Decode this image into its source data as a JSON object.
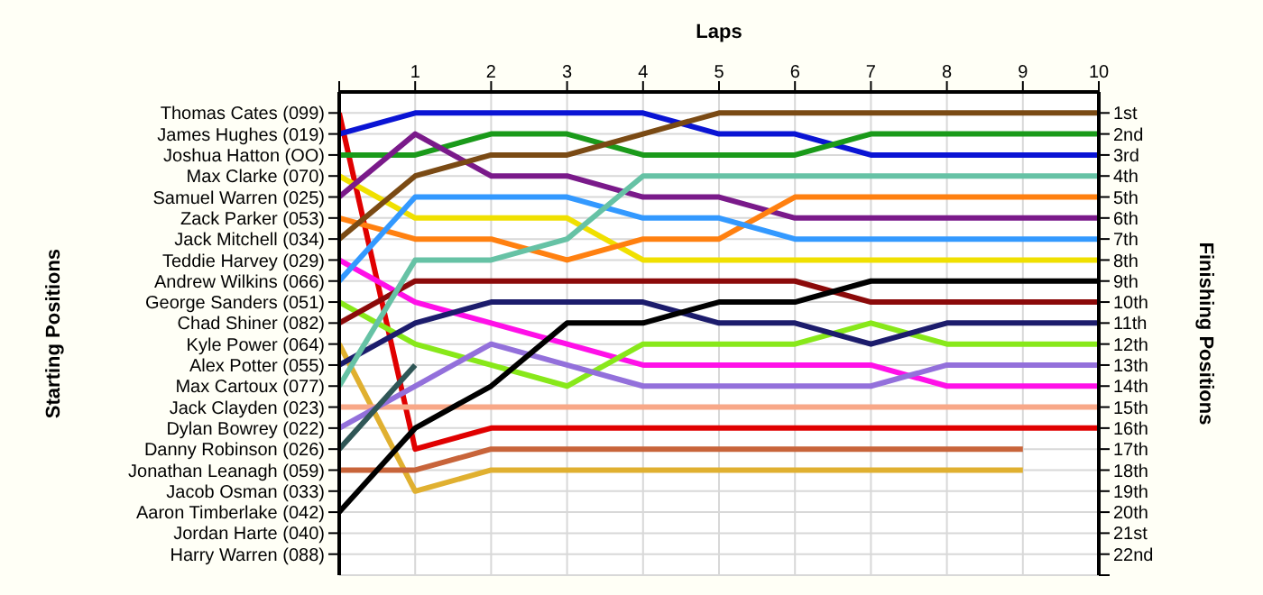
{
  "chart_data": {
    "type": "line",
    "xlabel": "Laps",
    "ylabel": "Finishing Positions",
    "annotations": [
      "Starting Positions"
    ],
    "x": [
      0,
      1,
      2,
      3,
      4,
      5,
      6,
      7,
      8,
      9,
      10
    ],
    "xlim": [
      0,
      10
    ],
    "xticks": [
      {
        "value": 0,
        "label": null
      },
      1,
      2,
      3,
      4,
      5,
      6,
      7,
      8,
      9,
      10
    ],
    "y_categories": [
      "Thomas Cates (099)",
      "James Hughes (019)",
      "Joshua Hatton (OO)",
      "Max Clarke (070)",
      "Samuel Warren (025)",
      "Zack Parker (053)",
      "Jack Mitchell (034)",
      "Teddie Harvey (029)",
      "Andrew Wilkins (066)",
      "George Sanders (051)",
      "Chad Shiner (082)",
      "Kyle Power (064)",
      "Alex Potter (055)",
      "Max Cartoux (077)",
      "Jack Clayden (023)",
      "Dylan Bowrey (022)",
      "Danny Robinson (026)",
      "Jonathan Leanagh (059)",
      "Jacob Osman (033)",
      "Aaron Timberlake (042)",
      "Jordan Harte (040)",
      "Harry Warren (088)"
    ],
    "ylim": [
      23,
      0
    ],
    "yticks": [
      {
        "value": 1,
        "label": "1st"
      },
      {
        "value": 2,
        "label": "2nd"
      },
      {
        "value": 3,
        "label": "3rd"
      },
      {
        "value": 4,
        "label": "4th"
      },
      {
        "value": 5,
        "label": "5th"
      },
      {
        "value": 6,
        "label": "6th"
      },
      {
        "value": 7,
        "label": "7th"
      },
      {
        "value": 8,
        "label": "8th"
      },
      {
        "value": 9,
        "label": "9th"
      },
      {
        "value": 10,
        "label": "10th"
      },
      {
        "value": 11,
        "label": "11th"
      },
      {
        "value": 12,
        "label": "12th"
      },
      {
        "value": 13,
        "label": "13th"
      },
      {
        "value": 14,
        "label": "14th"
      },
      {
        "value": 15,
        "label": "15th"
      },
      {
        "value": 16,
        "label": "16th"
      },
      {
        "value": 17,
        "label": "17th"
      },
      {
        "value": 18,
        "label": "18th"
      },
      {
        "value": 19,
        "label": "19th"
      },
      {
        "value": 20,
        "label": "20th"
      },
      {
        "value": 21,
        "label": "21st"
      },
      {
        "value": 22,
        "label": "22nd"
      },
      {
        "value": 23,
        "label": null
      }
    ],
    "grid": true,
    "series": [
      {
        "color": "#e00000",
        "values": [
          1,
          17,
          16,
          16,
          16,
          16,
          16,
          16,
          16,
          16,
          16
        ]
      },
      {
        "color": "#0a14d4",
        "values": [
          2,
          1,
          1,
          1,
          1,
          2,
          2,
          3,
          3,
          3,
          3
        ]
      },
      {
        "color": "#1a9a1a",
        "values": [
          3,
          3,
          2,
          2,
          3,
          3,
          3,
          2,
          2,
          2,
          2
        ]
      },
      {
        "color": "#f0e000",
        "values": [
          4,
          6,
          6,
          6,
          8,
          8,
          8,
          8,
          8,
          8,
          8
        ]
      },
      {
        "color": "#7a1a8a",
        "values": [
          5,
          2,
          4,
          4,
          5,
          5,
          6,
          6,
          6,
          6,
          6
        ]
      },
      {
        "color": "#ff8010",
        "values": [
          6,
          7,
          7,
          8,
          7,
          7,
          5,
          5,
          5,
          5,
          5
        ]
      },
      {
        "color": "#7a4a14",
        "values": [
          7,
          4,
          3,
          3,
          2,
          1,
          1,
          1,
          1,
          1,
          1
        ]
      },
      {
        "color": "#ff10e8",
        "values": [
          8,
          10,
          11,
          12,
          13,
          13,
          13,
          13,
          14,
          14,
          14
        ]
      },
      {
        "color": "#3399ff",
        "values": [
          9,
          5,
          5,
          5,
          6,
          6,
          7,
          7,
          7,
          7,
          7
        ]
      },
      {
        "color": "#88e81a",
        "values": [
          10,
          12,
          13,
          14,
          12,
          12,
          12,
          11,
          12,
          12,
          12
        ]
      },
      {
        "color": "#8b0a0a",
        "values": [
          11,
          9,
          9,
          9,
          9,
          9,
          9,
          10,
          10,
          10,
          10
        ]
      },
      {
        "color": "#e0b030",
        "values": [
          12,
          19,
          18,
          18,
          18,
          18,
          18,
          18,
          18,
          18,
          null
        ]
      },
      {
        "color": "#1c1c6c",
        "values": [
          13,
          11,
          10,
          10,
          10,
          11,
          11,
          12,
          11,
          11,
          11
        ]
      },
      {
        "color": "#66c2a5",
        "values": [
          14,
          8,
          8,
          7,
          4,
          4,
          4,
          4,
          4,
          4,
          4
        ]
      },
      {
        "color": "#f8a888",
        "values": [
          15,
          15,
          15,
          15,
          15,
          15,
          15,
          15,
          15,
          15,
          15
        ]
      },
      {
        "color": "#9370db",
        "values": [
          16,
          14,
          12,
          13,
          14,
          14,
          14,
          14,
          13,
          13,
          13
        ]
      },
      {
        "color": "#2f5656",
        "values": [
          17,
          13,
          null,
          null,
          null,
          null,
          null,
          null,
          null,
          null,
          null
        ]
      },
      {
        "color": "#c8643a",
        "values": [
          18,
          18,
          17,
          17,
          17,
          17,
          17,
          17,
          17,
          17,
          null
        ]
      },
      {
        "color": "#000000",
        "values": [
          20,
          16,
          14,
          11,
          11,
          10,
          10,
          9,
          9,
          9,
          9
        ]
      }
    ]
  }
}
